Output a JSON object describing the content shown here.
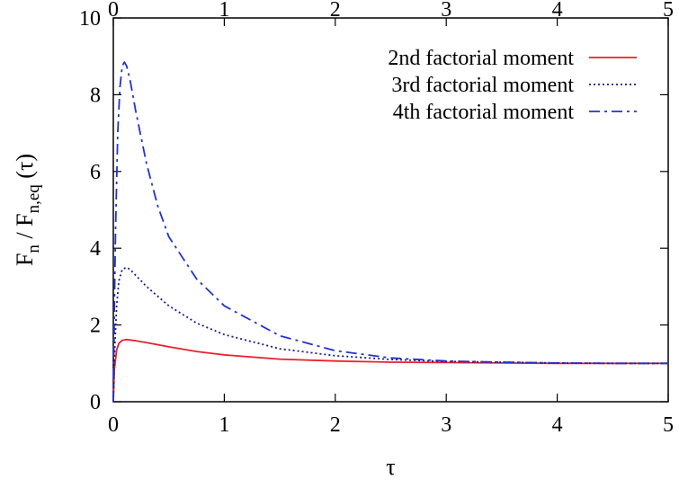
{
  "chart_data": {
    "type": "line",
    "xlabel": "τ",
    "ylabel": {
      "main": "F",
      "sub1": "n",
      "mid": " / F",
      "sub2": "n,eq",
      "tail": " (τ)"
    },
    "xlim": [
      0,
      5
    ],
    "ylim": [
      0,
      10
    ],
    "x_ticks": [
      "0",
      "1",
      "2",
      "3",
      "4",
      "5"
    ],
    "x2_ticks": [
      "0",
      "1",
      "2",
      "3",
      "4",
      "5"
    ],
    "y_ticks": [
      "0",
      "2",
      "4",
      "6",
      "8",
      "10"
    ],
    "grid": false,
    "legend_position": "top-right",
    "series": [
      {
        "name": "2nd factorial moment",
        "color": "#e8202a",
        "style": "solid",
        "x": [
          0,
          0.01,
          0.03,
          0.05,
          0.08,
          0.12,
          0.15,
          0.2,
          0.3,
          0.5,
          0.75,
          1.0,
          1.5,
          2.0,
          2.5,
          3.0,
          3.5,
          4.0,
          4.5,
          5.0
        ],
        "y": [
          0,
          0.85,
          1.35,
          1.52,
          1.6,
          1.62,
          1.61,
          1.59,
          1.54,
          1.43,
          1.31,
          1.22,
          1.11,
          1.06,
          1.03,
          1.02,
          1.01,
          1.0,
          1.0,
          1.0
        ]
      },
      {
        "name": "3rd factorial moment",
        "color": "#1a1a8c",
        "style": "dotted",
        "x": [
          0,
          0.01,
          0.03,
          0.05,
          0.08,
          0.12,
          0.15,
          0.2,
          0.3,
          0.5,
          0.75,
          1.0,
          1.5,
          2.0,
          2.5,
          3.0,
          3.5,
          4.0,
          4.5,
          5.0
        ],
        "y": [
          0,
          1.2,
          2.5,
          3.15,
          3.45,
          3.5,
          3.45,
          3.3,
          3.0,
          2.5,
          2.05,
          1.75,
          1.38,
          1.2,
          1.1,
          1.05,
          1.03,
          1.01,
          1.0,
          1.0
        ]
      },
      {
        "name": "4th factorial moment",
        "color": "#2233cc",
        "style": "dashdot",
        "x": [
          0,
          0.01,
          0.02,
          0.04,
          0.06,
          0.08,
          0.1,
          0.12,
          0.15,
          0.2,
          0.25,
          0.3,
          0.4,
          0.5,
          0.75,
          1.0,
          1.5,
          2.0,
          2.5,
          3.0,
          3.5,
          4.0,
          4.5,
          5.0
        ],
        "y": [
          0,
          2.5,
          4.5,
          7.0,
          8.2,
          8.75,
          8.85,
          8.75,
          8.4,
          7.6,
          6.9,
          6.2,
          5.1,
          4.3,
          3.2,
          2.5,
          1.72,
          1.33,
          1.14,
          1.06,
          1.03,
          1.01,
          1.0,
          1.0
        ]
      }
    ]
  }
}
